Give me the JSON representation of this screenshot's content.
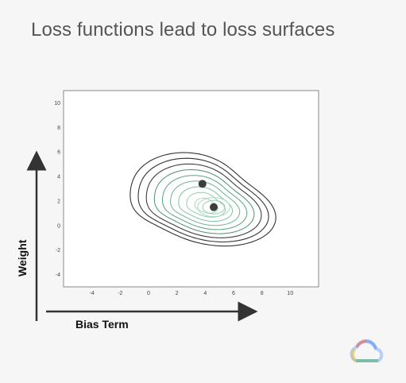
{
  "slide": {
    "title": "Loss functions lead to loss surfaces"
  },
  "axes": {
    "y_label": "Weight",
    "x_label": "Bias Term"
  },
  "chart_data": {
    "type": "contour",
    "title": "",
    "xlim": [
      -6,
      12
    ],
    "ylim": [
      -5,
      11
    ],
    "x_ticks": [
      -4,
      -2,
      0,
      2,
      4,
      6,
      8,
      10
    ],
    "y_ticks": [
      -4,
      -2,
      0,
      2,
      4,
      6,
      8,
      10
    ],
    "grid": false,
    "minima": [
      {
        "x": 3.8,
        "y": 3.4
      },
      {
        "x": 4.6,
        "y": 1.5
      }
    ],
    "contour_colors": [
      "#333333",
      "#333333",
      "#3f3f3f",
      "#4f8f70",
      "#5aa382",
      "#6bb593",
      "#7ec3a3",
      "#94cfb3",
      "#a8d9c2"
    ]
  },
  "logo": {
    "icon": "google-cloud-icon",
    "colors": [
      "#ea4335",
      "#fbbc05",
      "#34a853",
      "#4285f4"
    ]
  }
}
